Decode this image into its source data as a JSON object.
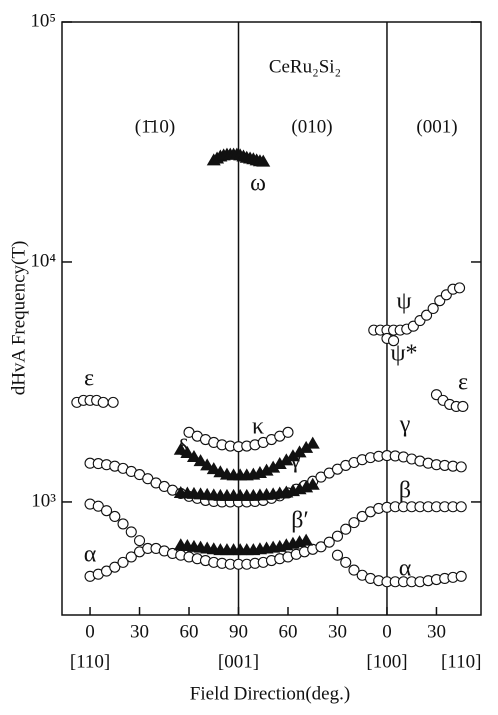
{
  "chart_data": {
    "type": "scatter",
    "title": "CeRu₂Si₂",
    "ylabel": "dHvA Frequency(T)",
    "xlabel": "Field Direction(deg.)",
    "yscale": "log",
    "ylim": [
      338,
      100000
    ],
    "yticks": [
      {
        "value": 1000,
        "label": "10³"
      },
      {
        "value": 10000,
        "label": "10⁴"
      },
      {
        "value": 100000,
        "label": "10⁵"
      }
    ],
    "xlim": [
      -17,
      237
    ],
    "xticks": [
      0,
      30,
      60,
      90,
      {
        "value": 120,
        "label": "60"
      },
      {
        "value": 150,
        "label": "30"
      },
      {
        "value": 180,
        "label": "0"
      },
      {
        "value": 210,
        "label": "30"
      }
    ],
    "xdirections": [
      {
        "value": 0,
        "label": "[110]"
      },
      {
        "value": 90,
        "label": "[001]"
      },
      {
        "value": 180,
        "label": "[100]"
      },
      {
        "value": 225,
        "label": "[110]"
      }
    ],
    "vlines": [
      90,
      180
    ],
    "regions": [
      "(1̄10)",
      "(010)",
      "(001)"
    ],
    "annotations": [
      "ε",
      "α",
      "δ",
      "κ",
      "γ′",
      "β′",
      "ω",
      "ψ",
      "ψ*",
      "γ",
      "β",
      "α",
      "ε"
    ],
    "series": [
      {
        "marker": "circle",
        "color": "#111",
        "x": [
          0,
          5,
          10,
          15,
          20,
          25,
          30
        ],
        "values": [
          490,
          500,
          515,
          535,
          560,
          590,
          620
        ]
      },
      {
        "marker": "circle",
        "color": "#111",
        "x": [
          0,
          5,
          10,
          15,
          20,
          25,
          30
        ],
        "values": [
          980,
          960,
          920,
          870,
          810,
          750,
          690
        ]
      },
      {
        "marker": "circle",
        "color": "#111",
        "x": [
          35,
          40,
          45,
          50,
          55,
          60,
          65,
          70,
          75,
          80,
          85,
          90,
          95,
          100,
          105,
          110,
          115,
          120,
          125,
          130,
          135,
          140
        ],
        "values": [
          640,
          640,
          625,
          610,
          600,
          590,
          580,
          570,
          560,
          555,
          550,
          550,
          550,
          555,
          560,
          570,
          580,
          590,
          605,
          620,
          635,
          650
        ]
      },
      {
        "marker": "circle",
        "color": "#111",
        "x": [
          145,
          150,
          155,
          160,
          165,
          170,
          175,
          180,
          185,
          190,
          195,
          200,
          205,
          210,
          215,
          220,
          225
        ],
        "values": [
          680,
          720,
          770,
          820,
          870,
          910,
          940,
          950,
          955,
          955,
          955,
          955,
          955,
          955,
          955,
          955,
          955
        ]
      },
      {
        "marker": "circle",
        "color": "#111",
        "x": [
          150,
          155,
          160,
          165,
          170,
          175,
          180,
          185,
          190,
          195,
          200,
          205,
          210,
          215,
          220,
          225
        ],
        "values": [
          600,
          560,
          520,
          495,
          480,
          470,
          465,
          465,
          465,
          465,
          465,
          470,
          475,
          480,
          485,
          490
        ]
      },
      {
        "marker": "circle",
        "color": "#111",
        "x": [
          0,
          5,
          10,
          15,
          20,
          25,
          30,
          35,
          40,
          45,
          50,
          55,
          60,
          65,
          70,
          75,
          80,
          85,
          90,
          95,
          100,
          105,
          110,
          115,
          120,
          125,
          130,
          135,
          140,
          145,
          150,
          155,
          160,
          165,
          170,
          175,
          180,
          185,
          190,
          195,
          200,
          205,
          210,
          215,
          220,
          225
        ],
        "values": [
          1450,
          1445,
          1430,
          1410,
          1380,
          1340,
          1300,
          1250,
          1200,
          1160,
          1120,
          1085,
          1055,
          1035,
          1015,
          1005,
          1000,
          1000,
          1000,
          1000,
          1005,
          1015,
          1035,
          1060,
          1090,
          1130,
          1170,
          1220,
          1270,
          1320,
          1370,
          1420,
          1460,
          1500,
          1530,
          1550,
          1560,
          1555,
          1540,
          1510,
          1480,
          1450,
          1430,
          1420,
          1410,
          1400
        ]
      },
      {
        "marker": "circle",
        "color": "#111",
        "x": [
          60,
          65,
          70,
          75,
          80,
          85,
          90,
          95,
          100,
          105,
          110,
          115,
          120
        ],
        "values": [
          1950,
          1880,
          1820,
          1770,
          1730,
          1710,
          1700,
          1710,
          1730,
          1770,
          1820,
          1880,
          1950
        ]
      },
      {
        "marker": "circle",
        "color": "#111",
        "x": [
          -8,
          -4,
          0,
          4,
          8,
          14
        ],
        "values": [
          2600,
          2650,
          2650,
          2650,
          2600,
          2600
        ]
      },
      {
        "marker": "circle",
        "color": "#111",
        "x": [
          210,
          214,
          218,
          222,
          226
        ],
        "values": [
          2800,
          2650,
          2550,
          2500,
          2500
        ]
      },
      {
        "marker": "circle",
        "color": "#111",
        "x": [
          172,
          176,
          180,
          184,
          188,
          192,
          196,
          200,
          204,
          208,
          212,
          216,
          220,
          224
        ],
        "values": [
          5200,
          5200,
          5200,
          5200,
          5200,
          5250,
          5400,
          5700,
          6000,
          6400,
          6900,
          7300,
          7700,
          7800
        ]
      },
      {
        "marker": "circle",
        "color": "#111",
        "x": [
          180,
          184
        ],
        "values": [
          4800,
          4700
        ]
      },
      {
        "marker": "triangle",
        "color": "#111",
        "x": [
          75,
          77,
          79,
          81,
          83,
          85,
          87,
          89,
          91,
          93,
          95,
          97,
          99,
          101,
          103,
          105
        ],
        "values": [
          26500,
          27000,
          27500,
          27800,
          28000,
          28000,
          28000,
          28000,
          27800,
          27500,
          27200,
          27000,
          26800,
          26500,
          26300,
          26200
        ]
      },
      {
        "marker": "triangle",
        "color": "#111",
        "x": [
          55,
          59,
          63,
          67,
          71,
          75,
          79,
          83,
          87,
          91,
          95,
          99,
          103,
          107,
          111,
          115,
          119,
          123,
          127,
          131,
          135
        ],
        "values": [
          1650,
          1600,
          1540,
          1480,
          1420,
          1370,
          1330,
          1300,
          1290,
          1290,
          1290,
          1300,
          1320,
          1350,
          1390,
          1440,
          1490,
          1550,
          1610,
          1680,
          1750
        ]
      },
      {
        "marker": "triangle",
        "color": "#111",
        "x": [
          55,
          59,
          63,
          67,
          71,
          75,
          79,
          83,
          87,
          91,
          95,
          99,
          103,
          107,
          111,
          115,
          119,
          123,
          127,
          131,
          135
        ],
        "values": [
          1090,
          1085,
          1080,
          1075,
          1070,
          1065,
          1060,
          1060,
          1060,
          1060,
          1060,
          1060,
          1065,
          1070,
          1075,
          1085,
          1095,
          1110,
          1130,
          1150,
          1180
        ]
      },
      {
        "marker": "triangle",
        "color": "#111",
        "x": [
          55,
          59,
          63,
          67,
          71,
          75,
          79,
          83,
          87,
          91,
          95,
          99,
          103,
          107,
          111,
          115,
          119,
          123,
          127,
          131
        ],
        "values": [
          660,
          655,
          650,
          645,
          640,
          635,
          630,
          630,
          630,
          630,
          630,
          630,
          635,
          640,
          645,
          650,
          660,
          670,
          680,
          690
        ]
      }
    ]
  }
}
